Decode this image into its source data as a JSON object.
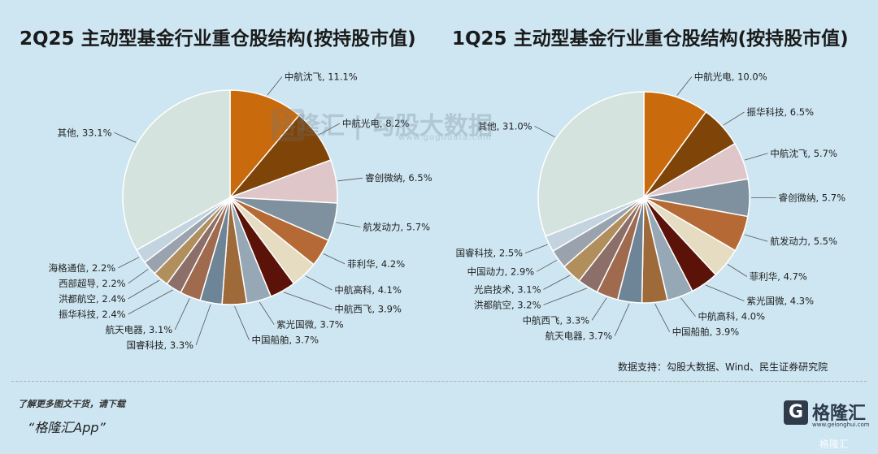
{
  "chart_data": [
    {
      "type": "pie",
      "title": "2Q25 主动型基金行业重仓股结构(按持股市值)",
      "slices": [
        {
          "label": "中航沈飞, 11.1%",
          "name": "中航沈飞",
          "value": 11.1,
          "color": "#c96a0c"
        },
        {
          "label": "中航光电, 8.2%",
          "name": "中航光电",
          "value": 8.2,
          "color": "#7f4407"
        },
        {
          "label": "睿创微纳, 6.5%",
          "name": "睿创微纳",
          "value": 6.5,
          "color": "#dfc6c9"
        },
        {
          "label": "航发动力, 5.7%",
          "name": "航发动力",
          "value": 5.7,
          "color": "#7f909f"
        },
        {
          "label": "菲利华, 4.2%",
          "name": "菲利华",
          "value": 4.2,
          "color": "#b56a35"
        },
        {
          "label": "中航高科, 4.1%",
          "name": "中航高科",
          "value": 4.1,
          "color": "#e5dcc2"
        },
        {
          "label": "中航西飞, 3.9%",
          "name": "中航西飞",
          "value": 3.9,
          "color": "#5b1208"
        },
        {
          "label": "紫光国微, 3.7%",
          "name": "紫光国微",
          "value": 3.7,
          "color": "#96a7b6"
        },
        {
          "label": "中国船舶, 3.7%",
          "name": "中国船舶",
          "value": 3.7,
          "color": "#9e6a3a"
        },
        {
          "label": "国睿科技, 3.3%",
          "name": "国睿科技",
          "value": 3.3,
          "color": "#6e8497"
        },
        {
          "label": "航天电器, 3.1%",
          "name": "航天电器",
          "value": 3.1,
          "color": "#a06a4f"
        },
        {
          "label": "振华科技, 2.4%",
          "name": "振华科技",
          "value": 2.4,
          "color": "#8c6f68"
        },
        {
          "label": "洪都航空, 2.4%",
          "name": "洪都航空",
          "value": 2.4,
          "color": "#b08f5c"
        },
        {
          "label": "西部超导, 2.2%",
          "name": "西部超导",
          "value": 2.2,
          "color": "#9aa3ad"
        },
        {
          "label": "海格通信, 2.2%",
          "name": "海格通信",
          "value": 2.2,
          "color": "#c3d3df"
        },
        {
          "label": "其他, 33.1%",
          "name": "其他",
          "value": 33.1,
          "color": "#d5e3de"
        }
      ]
    },
    {
      "type": "pie",
      "title": "1Q25 主动型基金行业重仓股结构(按持股市值)",
      "slices": [
        {
          "label": "中航光电, 10.0%",
          "name": "中航光电",
          "value": 10.0,
          "color": "#c96a0c"
        },
        {
          "label": "振华科技, 6.5%",
          "name": "振华科技",
          "value": 6.5,
          "color": "#7f4407"
        },
        {
          "label": "中航沈飞, 5.7%",
          "name": "中航沈飞",
          "value": 5.7,
          "color": "#dfc6c9"
        },
        {
          "label": "睿创微纳, 5.7%",
          "name": "睿创微纳",
          "value": 5.7,
          "color": "#7f909f"
        },
        {
          "label": "航发动力, 5.5%",
          "name": "航发动力",
          "value": 5.5,
          "color": "#b56a35"
        },
        {
          "label": "菲利华, 4.7%",
          "name": "菲利华",
          "value": 4.7,
          "color": "#e5dcc2"
        },
        {
          "label": "紫光国微, 4.3%",
          "name": "紫光国微",
          "value": 4.3,
          "color": "#5b1208"
        },
        {
          "label": "中航高科, 4.0%",
          "name": "中航高科",
          "value": 4.0,
          "color": "#96a7b6"
        },
        {
          "label": "中国船舶, 3.9%",
          "name": "中国船舶",
          "value": 3.9,
          "color": "#9e6a3a"
        },
        {
          "label": "航天电器, 3.7%",
          "name": "航天电器",
          "value": 3.7,
          "color": "#6e8497"
        },
        {
          "label": "中航西飞, 3.3%",
          "name": "中航西飞",
          "value": 3.3,
          "color": "#a06a4f"
        },
        {
          "label": "洪都航空, 3.2%",
          "name": "洪都航空",
          "value": 3.2,
          "color": "#8c6f68"
        },
        {
          "label": "光启技术, 3.1%",
          "name": "光启技术",
          "value": 3.1,
          "color": "#b08f5c"
        },
        {
          "label": "中国动力, 2.9%",
          "name": "中国动力",
          "value": 2.9,
          "color": "#9aa3ad"
        },
        {
          "label": "国睿科技, 2.5%",
          "name": "国睿科技",
          "value": 2.5,
          "color": "#c3d3df"
        },
        {
          "label": "其他, 31.0%",
          "name": "其他",
          "value": 31.0,
          "color": "#d5e3de"
        }
      ]
    }
  ],
  "source": "数据支持：勾股大数据、Wind、民生证券研究院",
  "footer": {
    "promo": "了解更多图文干货，请下载",
    "app": "“格隆汇App”"
  },
  "brand": {
    "logo_letter": "G",
    "name": "格隆汇",
    "url": "www.gelonghui.com",
    "corner": "格隆汇"
  },
  "watermark": {
    "text": "格隆汇 | 勾股大数据",
    "url": "www.gogudata.com"
  }
}
